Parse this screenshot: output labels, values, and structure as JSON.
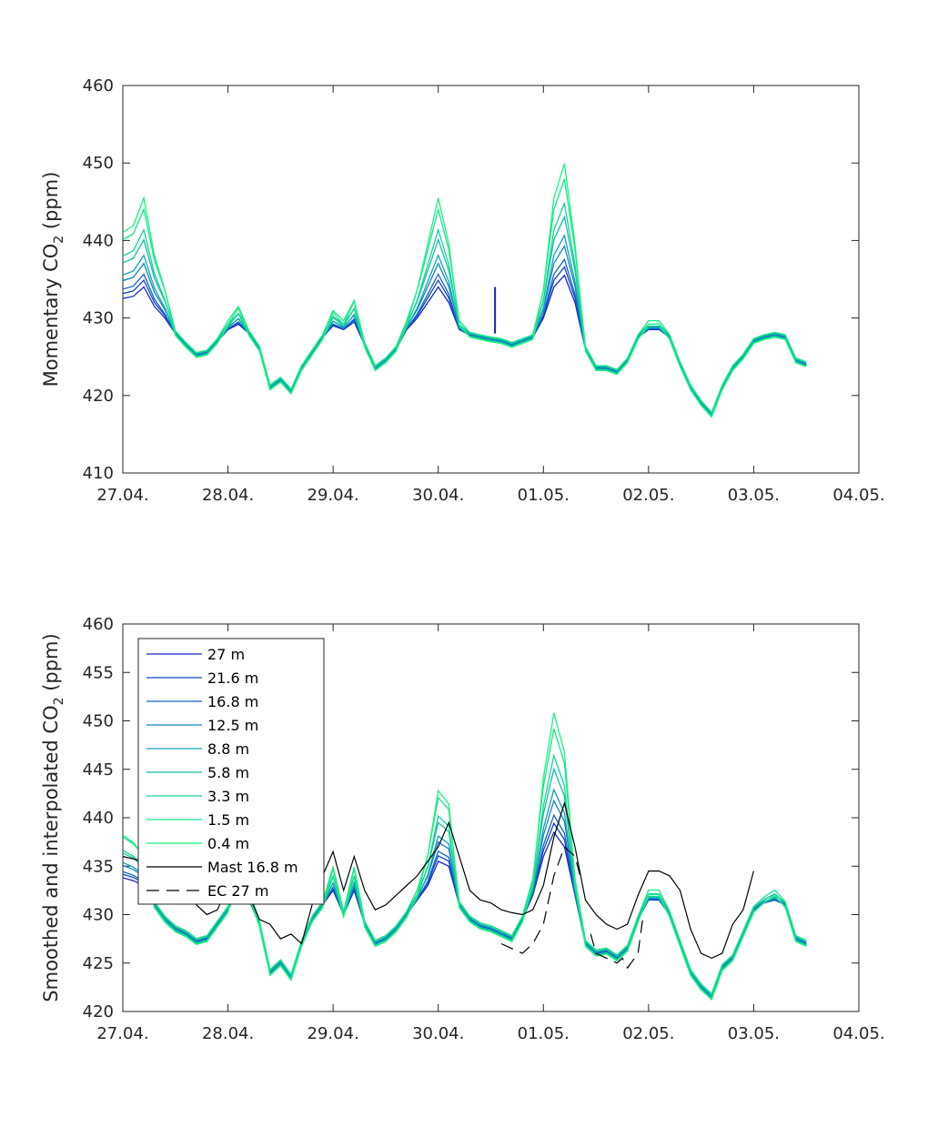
{
  "chart_data": [
    {
      "type": "line",
      "ylabel_main": "Momentary CO",
      "ylabel_sub": "2",
      "ylabel_unit": "  (ppm)",
      "xlim": [
        0,
        7
      ],
      "ylim": [
        410,
        460
      ],
      "xticks": [
        0,
        1,
        2,
        3,
        4,
        5,
        6,
        7
      ],
      "xtick_labels": [
        "27.04.",
        "28.04.",
        "29.04.",
        "30.04.",
        "01.05.",
        "02.05.",
        "03.05.",
        "04.05."
      ],
      "yticks": [
        410,
        420,
        430,
        440,
        450,
        460
      ],
      "ytick_labels": [
        "410",
        "420",
        "430",
        "440",
        "450",
        "460"
      ],
      "base_series": {
        "x": [
          0.0,
          0.1,
          0.2,
          0.3,
          0.4,
          0.5,
          0.6,
          0.7,
          0.8,
          0.9,
          1.0,
          1.1,
          1.2,
          1.3,
          1.4,
          1.5,
          1.6,
          1.7,
          1.8,
          1.9,
          2.0,
          2.1,
          2.2,
          2.3,
          2.4,
          2.5,
          2.6,
          2.7,
          2.8,
          2.9,
          3.0,
          3.1,
          3.2,
          3.3,
          3.4,
          3.5,
          3.6,
          3.7,
          3.8,
          3.9,
          4.0,
          4.1,
          4.2,
          4.3,
          4.4,
          4.5,
          4.6,
          4.7,
          4.8,
          4.9,
          5.0,
          5.1,
          5.2,
          5.3,
          5.4,
          5.5,
          5.6,
          5.7,
          5.8,
          5.9,
          6.0,
          6.1,
          6.2,
          6.3,
          6.4,
          6.5
        ],
        "y": [
          432.5,
          432.8,
          434,
          431.5,
          430,
          428,
          426.5,
          425.2,
          425.5,
          427,
          428.5,
          429.2,
          428,
          426,
          421,
          422,
          420.5,
          423.5,
          425.5,
          427.5,
          429,
          428.5,
          429.5,
          426.5,
          423.5,
          424.5,
          426,
          428.5,
          430,
          432,
          434,
          432,
          428.5,
          427.8,
          427.5,
          427.2,
          427,
          426.5,
          427,
          427.5,
          430,
          434,
          435.5,
          432,
          426,
          423.5,
          423.5,
          423,
          424.5,
          427.5,
          428.5,
          428.5,
          427.5,
          424,
          421,
          419,
          417.5,
          421,
          423.5,
          425,
          427,
          427.5,
          427.8,
          427.5,
          424.5,
          424
        ]
      },
      "series": [
        {
          "name": "27 m",
          "color": "#1525c8"
        },
        {
          "name": "21.6 m",
          "color": "#1245c6"
        },
        {
          "name": "16.8 m",
          "color": "#1065c4"
        },
        {
          "name": "12.5 m",
          "color": "#0f85bf"
        },
        {
          "name": "8.8 m",
          "color": "#0fa2b4"
        },
        {
          "name": "5.8 m",
          "color": "#10bda6"
        },
        {
          "name": "3.3 m",
          "color": "#12d498"
        },
        {
          "name": "1.5 m",
          "color": "#14e68a"
        },
        {
          "name": "0.4 m",
          "color": "#18f27e"
        }
      ],
      "spike": {
        "x": 3.54,
        "y0": 428,
        "y1": 434,
        "color": "#1525c8"
      }
    },
    {
      "type": "line",
      "ylabel_main": "Smoothed and interpolated CO",
      "ylabel_sub": "2",
      "ylabel_unit": "  (ppm)",
      "xlim": [
        0,
        7
      ],
      "ylim": [
        420,
        460
      ],
      "xticks": [
        0,
        1,
        2,
        3,
        4,
        5,
        6,
        7
      ],
      "xtick_labels": [
        "27.04.",
        "28.04.",
        "29.04.",
        "30.04.",
        "01.05.",
        "02.05.",
        "03.05.",
        "04.05."
      ],
      "yticks": [
        420,
        425,
        430,
        435,
        440,
        445,
        450,
        455,
        460
      ],
      "ytick_labels": [
        "420",
        "425",
        "430",
        "435",
        "440",
        "445",
        "450",
        "455",
        "460"
      ],
      "base_series": {
        "x": [
          0.0,
          0.1,
          0.2,
          0.3,
          0.4,
          0.5,
          0.6,
          0.7,
          0.8,
          0.9,
          1.0,
          1.1,
          1.2,
          1.3,
          1.4,
          1.5,
          1.6,
          1.7,
          1.8,
          1.9,
          2.0,
          2.1,
          2.2,
          2.3,
          2.4,
          2.5,
          2.6,
          2.7,
          2.8,
          2.9,
          3.0,
          3.1,
          3.2,
          3.3,
          3.4,
          3.5,
          3.6,
          3.7,
          3.8,
          3.9,
          4.0,
          4.1,
          4.2,
          4.3,
          4.4,
          4.5,
          4.6,
          4.7,
          4.8,
          4.9,
          5.0,
          5.1,
          5.2,
          5.3,
          5.4,
          5.5,
          5.6,
          5.7,
          5.8,
          5.9,
          6.0,
          6.1,
          6.2,
          6.3,
          6.4,
          6.5
        ],
        "y": [
          433.8,
          433.5,
          433,
          431,
          429.5,
          428.5,
          428,
          427.2,
          427.5,
          429,
          430.5,
          432.5,
          431.5,
          429,
          424,
          425,
          423.5,
          427,
          429.5,
          431,
          432.5,
          430,
          432.5,
          429,
          427,
          427.5,
          428.5,
          430,
          431.5,
          433,
          435.5,
          435,
          431,
          429.5,
          428.8,
          428.5,
          428,
          427.5,
          429.5,
          432,
          436,
          438.5,
          437,
          432,
          427,
          426,
          426.2,
          425.5,
          426.5,
          429.5,
          431.5,
          431.5,
          430,
          427,
          424,
          422.5,
          421.5,
          424.5,
          425.5,
          428,
          430.5,
          431.2,
          431.5,
          431,
          427.5,
          427
        ]
      },
      "series": [
        {
          "name": "27 m",
          "color": "#1525c8"
        },
        {
          "name": "21.6 m",
          "color": "#1245c6"
        },
        {
          "name": "16.8 m",
          "color": "#1065c4"
        },
        {
          "name": "12.5 m",
          "color": "#0f85bf"
        },
        {
          "name": "8.8 m",
          "color": "#0fa2b4"
        },
        {
          "name": "5.8 m",
          "color": "#10bda6"
        },
        {
          "name": "3.3 m",
          "color": "#12d498"
        },
        {
          "name": "1.5 m",
          "color": "#14e68a"
        },
        {
          "name": "0.4 m",
          "color": "#18f27e"
        },
        {
          "name": "Mast 16.8 m",
          "color": "#000000",
          "x": [
            0.0,
            0.2,
            0.4,
            0.6,
            0.8,
            0.9,
            1.0,
            1.1,
            1.2,
            1.3,
            1.4,
            1.5,
            1.6,
            1.7,
            1.8,
            1.9,
            2.0,
            2.1,
            2.2,
            2.3,
            2.4,
            2.5,
            2.6,
            2.7,
            2.8,
            2.9,
            3.0,
            3.1,
            3.2,
            3.3,
            3.4,
            3.5,
            3.6,
            3.7,
            3.8,
            3.9,
            4.0,
            4.1,
            4.2,
            4.3,
            4.4,
            4.5,
            4.6,
            4.7,
            4.8,
            4.9,
            5.0,
            5.1,
            5.2,
            5.3,
            5.4,
            5.5,
            5.6,
            5.7,
            5.8,
            5.9,
            6.0
          ],
          "y": [
            436,
            435.5,
            433,
            432,
            430,
            430.5,
            433,
            435.5,
            432,
            429.5,
            429,
            427.5,
            428,
            427,
            431,
            434,
            436.5,
            432.5,
            436,
            432.5,
            430.5,
            431,
            432,
            433,
            434,
            435.5,
            437,
            439.5,
            436,
            432.5,
            431.5,
            431.2,
            430.5,
            430.2,
            430,
            430.5,
            433,
            438,
            441.5,
            437,
            431.5,
            430,
            429,
            428.5,
            429,
            432,
            434.5,
            434.5,
            434,
            432.5,
            428.5,
            426,
            425.5,
            426,
            429,
            430.5,
            434.5
          ]
        },
        {
          "name": "EC 27 m",
          "color": "#000000",
          "dash": "14,8",
          "segments": [
            {
              "x": [
                3.6,
                3.7,
                3.8,
                3.9,
                4.0,
                4.1,
                4.2,
                4.3,
                4.35
              ],
              "y": [
                427,
                426.5,
                426,
                427,
                429,
                434,
                437,
                436,
                434
              ]
            },
            {
              "x": [
                4.45,
                4.5,
                4.6,
                4.7,
                4.75,
                4.8,
                4.9,
                4.95
              ],
              "y": [
                428,
                426,
                425.5,
                425,
                425.5,
                424.5,
                426,
                430
              ]
            }
          ]
        }
      ]
    }
  ]
}
